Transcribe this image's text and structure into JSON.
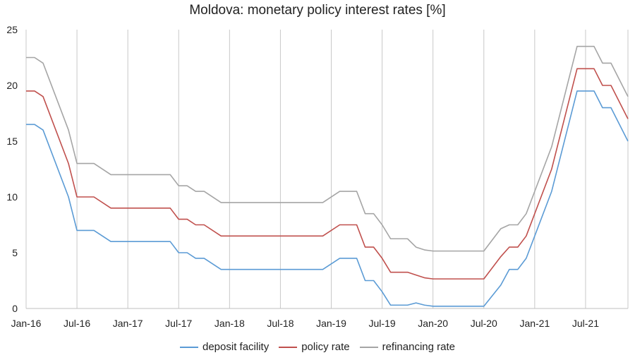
{
  "chart_data": {
    "type": "line",
    "title": "Moldova: monetary policy interest rates [%]",
    "xlabel": "",
    "ylabel": "",
    "ylim": [
      0,
      25
    ],
    "yticks": [
      0,
      5,
      10,
      15,
      20,
      25
    ],
    "x_range": [
      "2016-01",
      "2021-12"
    ],
    "x_tick_labels": [
      "Jan-16",
      "Jul-16",
      "Jan-17",
      "Jul-17",
      "Jan-18",
      "Jul-18",
      "Jan-19",
      "Jul-19",
      "Jan-20",
      "Jul-20",
      "Jan-21",
      "Jul-21"
    ],
    "x_ticks": [
      "2016-01",
      "2016-07",
      "2017-01",
      "2017-07",
      "2018-01",
      "2018-07",
      "2019-01",
      "2019-07",
      "2020-01",
      "2020-07",
      "2021-01",
      "2021-07"
    ],
    "grid": {
      "vertical": true,
      "horizontal": false
    },
    "legend": "bottom",
    "series": [
      {
        "name": "deposit facility",
        "color": "#5b9bd5",
        "points": [
          [
            "2016-01",
            16.5
          ],
          [
            "2016-02",
            16.5
          ],
          [
            "2016-03",
            16
          ],
          [
            "2016-06",
            10
          ],
          [
            "2016-07",
            7
          ],
          [
            "2016-09",
            7
          ],
          [
            "2016-11",
            6
          ],
          [
            "2017-06",
            6
          ],
          [
            "2017-07",
            5
          ],
          [
            "2017-08",
            5
          ],
          [
            "2017-09",
            4.5
          ],
          [
            "2017-10",
            4.5
          ],
          [
            "2017-12",
            3.5
          ],
          [
            "2018-12",
            3.5
          ],
          [
            "2019-02",
            4.5
          ],
          [
            "2019-04",
            4.5
          ],
          [
            "2019-05",
            2.5
          ],
          [
            "2019-06",
            2.5
          ],
          [
            "2019-07",
            1.5
          ],
          [
            "2019-08",
            0.3
          ],
          [
            "2019-10",
            0.3
          ],
          [
            "2019-11",
            0.5
          ],
          [
            "2019-12",
            0.3
          ],
          [
            "2020-01",
            0.2
          ],
          [
            "2020-07",
            0.2
          ],
          [
            "2020-09",
            2.1
          ],
          [
            "2020-10",
            3.5
          ],
          [
            "2020-11",
            3.5
          ],
          [
            "2020-12",
            4.5
          ],
          [
            "2021-01",
            6.5
          ],
          [
            "2021-03",
            10.5
          ],
          [
            "2021-06",
            19.5
          ],
          [
            "2021-08",
            19.5
          ],
          [
            "2021-09",
            18
          ],
          [
            "2021-10",
            18
          ],
          [
            "2021-12",
            15
          ]
        ]
      },
      {
        "name": "policy rate",
        "color": "#c0504d",
        "points": [
          [
            "2016-01",
            19.5
          ],
          [
            "2016-02",
            19.5
          ],
          [
            "2016-03",
            19
          ],
          [
            "2016-06",
            13
          ],
          [
            "2016-07",
            10
          ],
          [
            "2016-09",
            10
          ],
          [
            "2016-11",
            9
          ],
          [
            "2017-06",
            9
          ],
          [
            "2017-07",
            8
          ],
          [
            "2017-08",
            8
          ],
          [
            "2017-09",
            7.5
          ],
          [
            "2017-10",
            7.5
          ],
          [
            "2017-12",
            6.5
          ],
          [
            "2018-12",
            6.5
          ],
          [
            "2019-02",
            7.5
          ],
          [
            "2019-04",
            7.5
          ],
          [
            "2019-05",
            5.5
          ],
          [
            "2019-06",
            5.5
          ],
          [
            "2019-07",
            4.5
          ],
          [
            "2019-08",
            3.25
          ],
          [
            "2019-10",
            3.25
          ],
          [
            "2019-11",
            3
          ],
          [
            "2019-12",
            2.75
          ],
          [
            "2020-01",
            2.65
          ],
          [
            "2020-07",
            2.65
          ],
          [
            "2020-09",
            4.65
          ],
          [
            "2020-10",
            5.5
          ],
          [
            "2020-11",
            5.5
          ],
          [
            "2020-12",
            6.5
          ],
          [
            "2021-01",
            8.5
          ],
          [
            "2021-03",
            12.5
          ],
          [
            "2021-06",
            21.5
          ],
          [
            "2021-08",
            21.5
          ],
          [
            "2021-09",
            20
          ],
          [
            "2021-10",
            20
          ],
          [
            "2021-12",
            17
          ]
        ]
      },
      {
        "name": "refinancing rate",
        "color": "#a5a5a5",
        "points": [
          [
            "2016-01",
            22.5
          ],
          [
            "2016-02",
            22.5
          ],
          [
            "2016-03",
            22
          ],
          [
            "2016-06",
            16
          ],
          [
            "2016-07",
            13
          ],
          [
            "2016-09",
            13
          ],
          [
            "2016-11",
            12
          ],
          [
            "2017-06",
            12
          ],
          [
            "2017-07",
            11
          ],
          [
            "2017-08",
            11
          ],
          [
            "2017-09",
            10.5
          ],
          [
            "2017-10",
            10.5
          ],
          [
            "2017-12",
            9.5
          ],
          [
            "2018-12",
            9.5
          ],
          [
            "2019-02",
            10.5
          ],
          [
            "2019-04",
            10.5
          ],
          [
            "2019-05",
            8.5
          ],
          [
            "2019-06",
            8.5
          ],
          [
            "2019-07",
            7.5
          ],
          [
            "2019-08",
            6.25
          ],
          [
            "2019-10",
            6.25
          ],
          [
            "2019-11",
            5.5
          ],
          [
            "2019-12",
            5.25
          ],
          [
            "2020-01",
            5.15
          ],
          [
            "2020-07",
            5.15
          ],
          [
            "2020-09",
            7.15
          ],
          [
            "2020-10",
            7.5
          ],
          [
            "2020-11",
            7.5
          ],
          [
            "2020-12",
            8.5
          ],
          [
            "2021-01",
            10.5
          ],
          [
            "2021-03",
            14.5
          ],
          [
            "2021-06",
            23.5
          ],
          [
            "2021-08",
            23.5
          ],
          [
            "2021-09",
            22
          ],
          [
            "2021-10",
            22
          ],
          [
            "2021-12",
            19
          ]
        ]
      }
    ]
  }
}
